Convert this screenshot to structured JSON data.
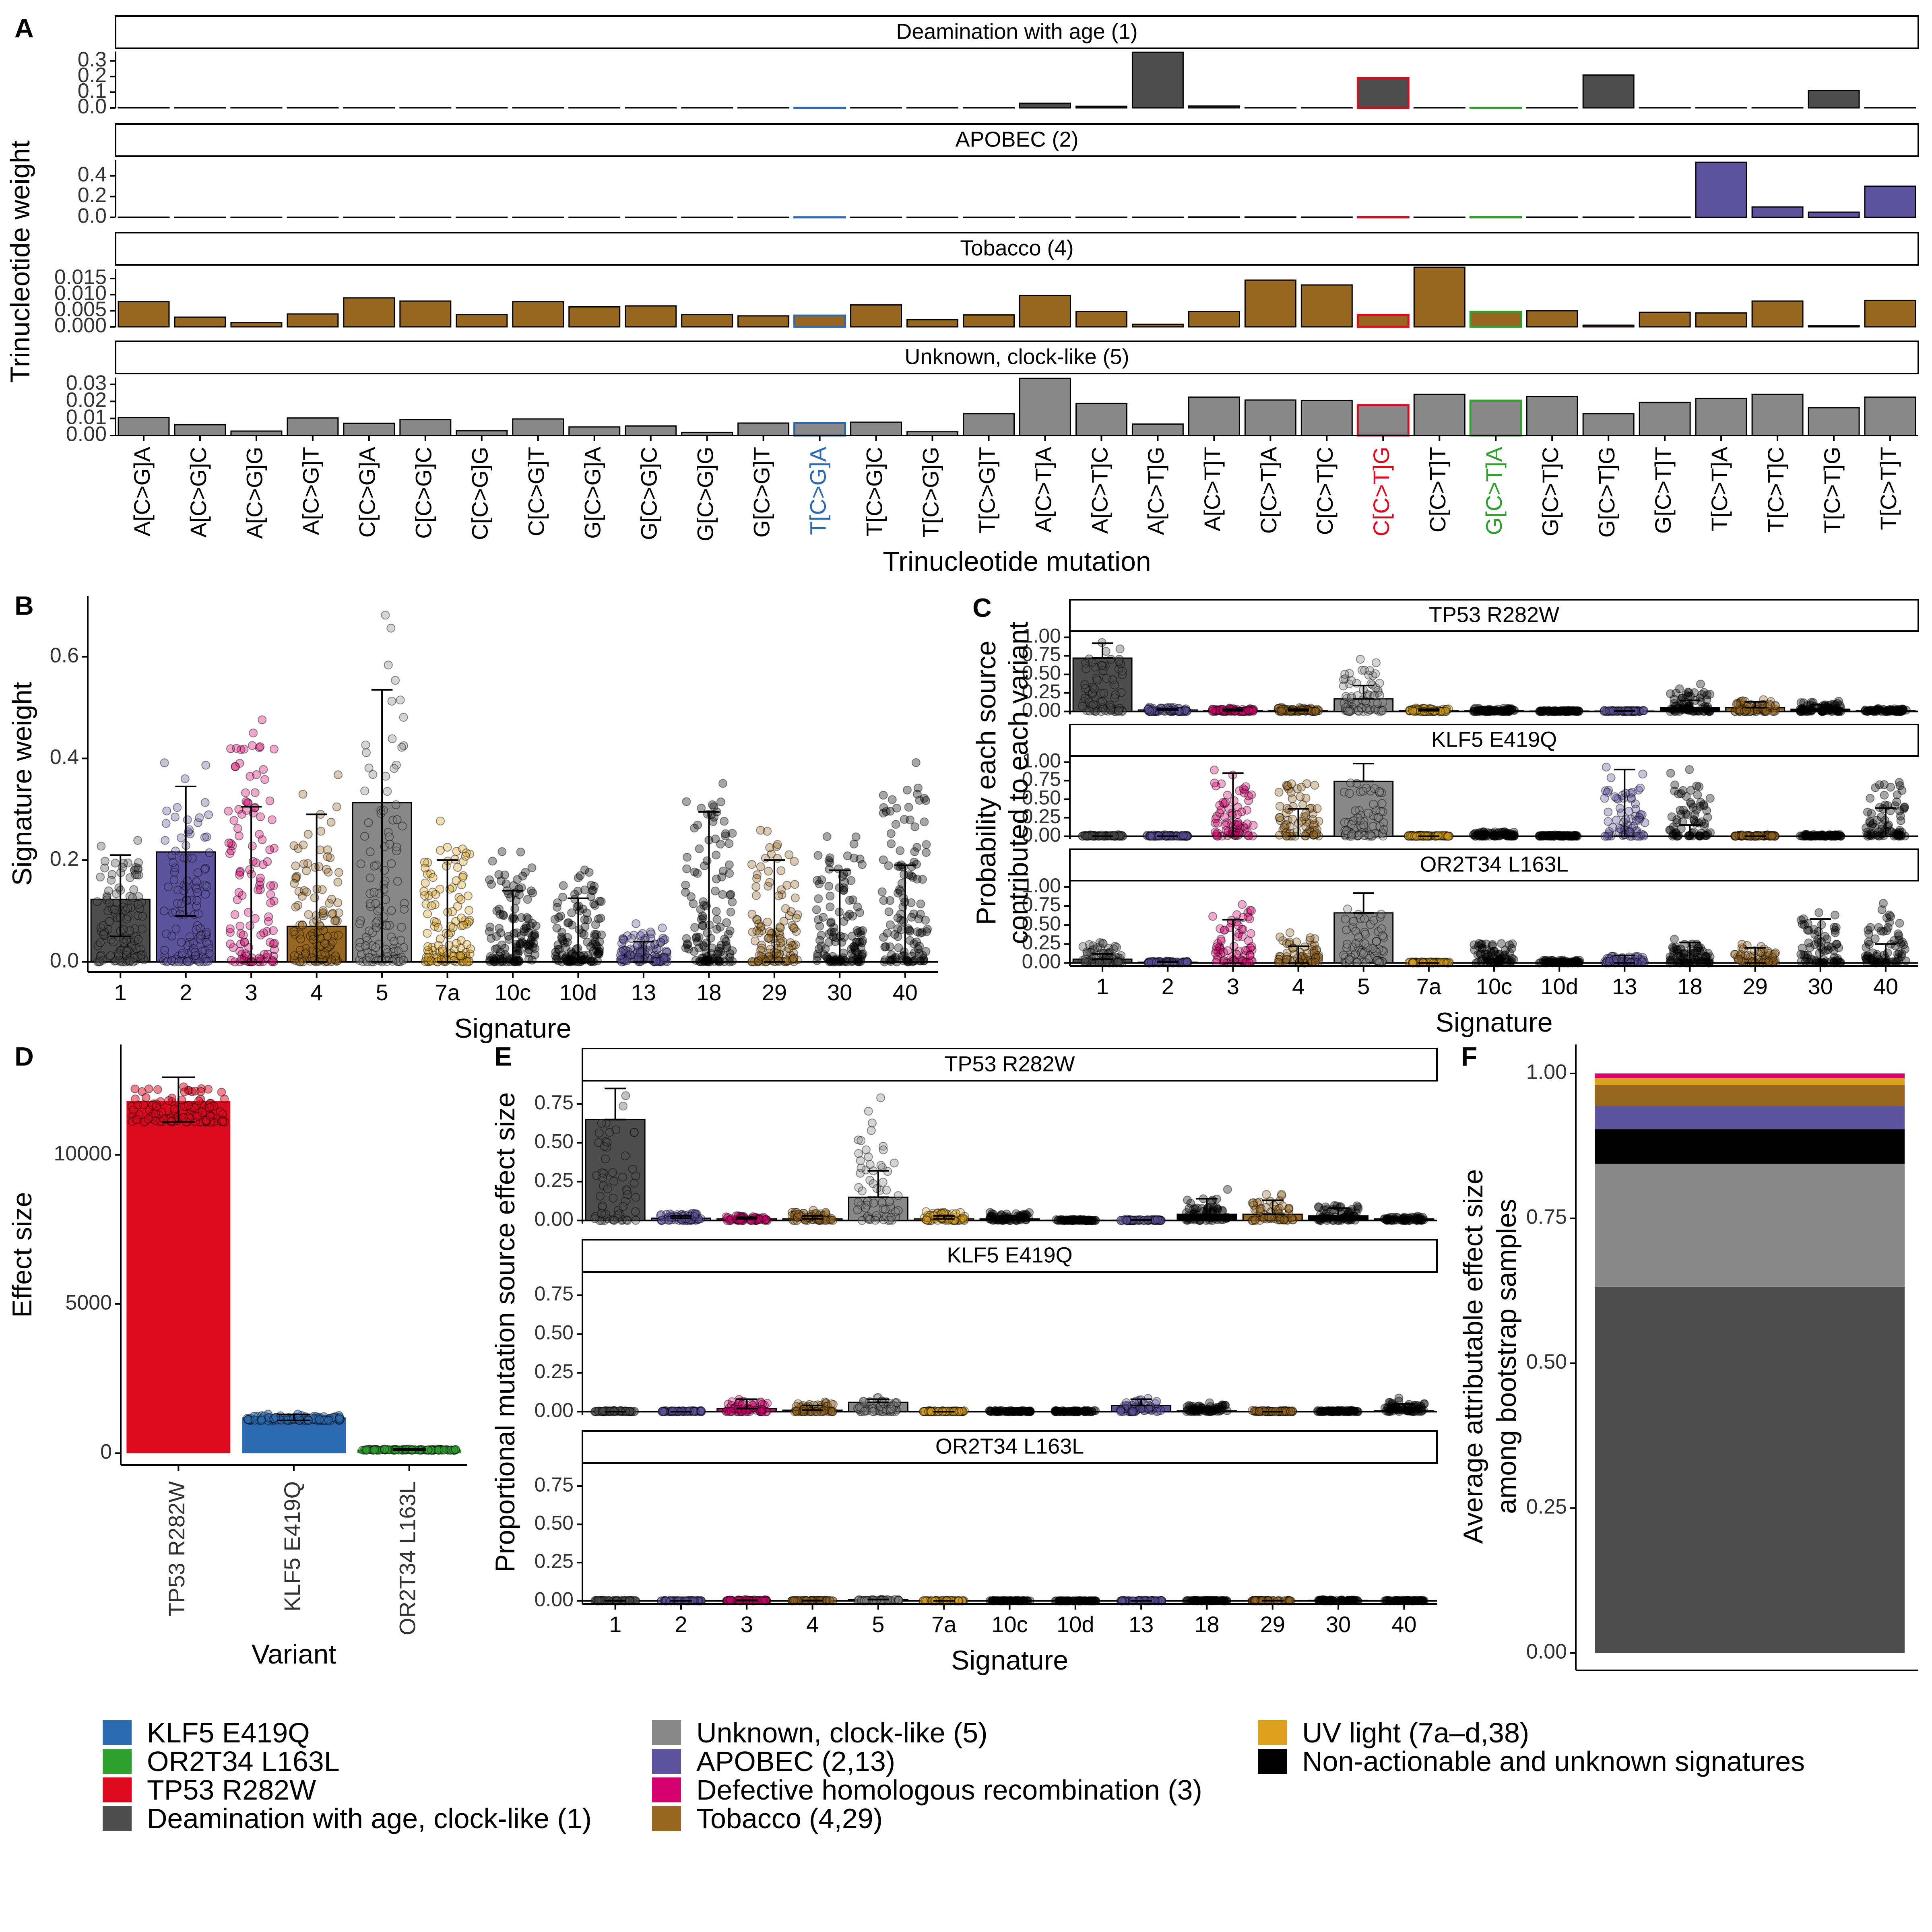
{
  "colors": {
    "deamination": "#4d4d4d",
    "apobec": "#5e549e",
    "tobacco": "#976620",
    "clock5": "#888888",
    "hr": "#d6006f",
    "uv": "#dba11c",
    "other": "#000000",
    "tp53": "#dc0a1f",
    "klf5": "#2c6bb2",
    "or2t34": "#2fa02f"
  },
  "chart_data": [
    {
      "panel": "A",
      "type": "bar",
      "ylabel": "Trinucleotide weight",
      "xlabel": "Trinucleotide mutation",
      "categories": [
        "A[C>G]A",
        "A[C>G]C",
        "A[C>G]G",
        "A[C>G]T",
        "C[C>G]A",
        "C[C>G]C",
        "C[C>G]G",
        "C[C>G]T",
        "G[C>G]A",
        "G[C>G]C",
        "G[C>G]G",
        "G[C>G]T",
        "T[C>G]A",
        "T[C>G]C",
        "T[C>G]G",
        "T[C>G]T",
        "A[C>T]A",
        "A[C>T]C",
        "A[C>T]G",
        "A[C>T]T",
        "C[C>T]A",
        "C[C>T]C",
        "C[C>T]G",
        "C[C>T]T",
        "G[C>T]A",
        "G[C>T]C",
        "G[C>T]G",
        "G[C>T]T",
        "T[C>T]A",
        "T[C>T]C",
        "T[C>T]G",
        "T[C>T]T"
      ],
      "highlight": {
        "T[C>G]A": "klf5",
        "C[C>T]G": "tp53",
        "G[C>T]A": "or2t34"
      },
      "facets": [
        {
          "title": "Deamination with age (1)",
          "color": "deamination",
          "ylim": [
            0,
            0.36
          ],
          "ticks": [
            "0.0",
            "0.1",
            "0.2",
            "0.3"
          ],
          "tick_values": [
            0,
            0.1,
            0.2,
            0.3
          ],
          "values": [
            0.002,
            0.001,
            0.001,
            0.002,
            0.001,
            0.001,
            0.001,
            0.001,
            0.001,
            0.001,
            0.001,
            0.001,
            0.001,
            0.001,
            0.001,
            0.001,
            0.03,
            0.01,
            0.355,
            0.012,
            0.001,
            0.001,
            0.19,
            0.001,
            0.001,
            0.001,
            0.21,
            0.001,
            0.001,
            0.001,
            0.11,
            0.001
          ]
        },
        {
          "title": "APOBEC (2)",
          "color": "apobec",
          "ylim": [
            0,
            0.55
          ],
          "ticks": [
            "0.0",
            "0.2",
            "0.4"
          ],
          "tick_values": [
            0,
            0.2,
            0.4
          ],
          "values": [
            0.002,
            0.001,
            0.001,
            0.001,
            0.001,
            0.001,
            0.001,
            0.001,
            0.001,
            0.001,
            0.001,
            0.001,
            0.001,
            0.001,
            0.001,
            0.001,
            0.001,
            0.002,
            0.002,
            0.004,
            0.004,
            0.003,
            0.002,
            0.002,
            0.002,
            0.003,
            0.003,
            0.003,
            0.53,
            0.1,
            0.05,
            0.3
          ]
        },
        {
          "title": "Tobacco (4)",
          "color": "tobacco",
          "ylim": [
            0,
            0.018
          ],
          "ticks": [
            "0.000",
            "0.005",
            "0.010",
            "0.015"
          ],
          "tick_values": [
            0,
            0.005,
            0.01,
            0.015
          ],
          "values": [
            0.0078,
            0.003,
            0.0013,
            0.004,
            0.009,
            0.008,
            0.0038,
            0.0078,
            0.0062,
            0.0065,
            0.0038,
            0.0034,
            0.0035,
            0.0068,
            0.0022,
            0.0037,
            0.0097,
            0.0048,
            0.0008,
            0.0048,
            0.0145,
            0.013,
            0.0037,
            0.0185,
            0.0047,
            0.005,
            0.0005,
            0.0045,
            0.0043,
            0.008,
            0.0003,
            0.0082
          ]
        },
        {
          "title": "Unknown, clock-like (5)",
          "color": "clock5",
          "ylim": [
            0,
            0.034
          ],
          "ticks": [
            "0.00",
            "0.01",
            "0.02",
            "0.03"
          ],
          "tick_values": [
            0,
            0.01,
            0.02,
            0.03
          ],
          "values": [
            0.0105,
            0.0063,
            0.0026,
            0.0103,
            0.0072,
            0.0093,
            0.0028,
            0.0097,
            0.005,
            0.0056,
            0.0018,
            0.0073,
            0.0073,
            0.0078,
            0.0022,
            0.0128,
            0.0335,
            0.0188,
            0.0067,
            0.0225,
            0.0208,
            0.0205,
            0.0178,
            0.0242,
            0.0205,
            0.0228,
            0.0128,
            0.0195,
            0.0217,
            0.0242,
            0.0163,
            0.0225
          ]
        }
      ]
    },
    {
      "panel": "B",
      "type": "bar",
      "xlabel": "Signature",
      "ylabel": "Signature weight",
      "categories": [
        "1",
        "2",
        "3",
        "4",
        "5",
        "7a",
        "10c",
        "10d",
        "13",
        "18",
        "29",
        "30",
        "40"
      ],
      "colors": [
        "deamination",
        "apobec",
        "hr",
        "tobacco",
        "clock5",
        "uv",
        "other",
        "other",
        "apobec",
        "other",
        "tobacco",
        "other",
        "other"
      ],
      "values": [
        0.123,
        0.216,
        0.0,
        0.07,
        0.313,
        0.0,
        0.0,
        0.0,
        0.0,
        0.0,
        0.0,
        0.0,
        0.0
      ],
      "err_low": [
        0.05,
        0.09,
        0.0,
        0.0,
        0.0,
        0.0,
        0.0,
        0.0,
        0.0,
        0.0,
        0.0,
        0.0,
        0.0
      ],
      "err_high": [
        0.21,
        0.345,
        0.305,
        0.29,
        0.535,
        0.2,
        0.14,
        0.125,
        0.04,
        0.295,
        0.2,
        0.18,
        0.19
      ],
      "jitter_max": [
        0.27,
        0.41,
        0.58,
        0.37,
        0.69,
        0.31,
        0.24,
        0.19,
        0.08,
        0.43,
        0.31,
        0.28,
        0.46
      ],
      "ylim": [
        -0.02,
        0.72
      ],
      "ticks": [
        "0.0",
        "0.2",
        "0.4",
        "0.6"
      ],
      "tick_values": [
        0,
        0.2,
        0.4,
        0.6
      ]
    },
    {
      "panel": "C",
      "type": "bar",
      "xlabel": "Signature",
      "ylabel": [
        "Probability each source",
        "contributed to each variant"
      ],
      "categories": [
        "1",
        "2",
        "3",
        "4",
        "5",
        "7a",
        "10c",
        "10d",
        "13",
        "18",
        "29",
        "30",
        "40"
      ],
      "colors": [
        "deamination",
        "apobec",
        "hr",
        "tobacco",
        "clock5",
        "uv",
        "other",
        "other",
        "apobec",
        "other",
        "tobacco",
        "other",
        "other"
      ],
      "ylim": [
        -0.04,
        1.1
      ],
      "ticks": [
        "0.00",
        "0.25",
        "0.50",
        "0.75",
        "1.00"
      ],
      "tick_values": [
        0,
        0.25,
        0.5,
        0.75,
        1.0
      ],
      "facets": [
        {
          "title": "TP53 R282W",
          "values": [
            0.72,
            0.02,
            0.01,
            0.01,
            0.17,
            0.01,
            0.01,
            0.005,
            0.005,
            0.05,
            0.05,
            0.03,
            0.01
          ],
          "err_high": [
            0.92,
            0.04,
            0.03,
            0.03,
            0.35,
            0.03,
            0.03,
            0.01,
            0.01,
            0.15,
            0.13,
            0.09,
            0.03
          ],
          "jitter_max": [
            0.97,
            0.07,
            0.05,
            0.06,
            0.88,
            0.05,
            0.06,
            0.02,
            0.02,
            0.38,
            0.22,
            0.17,
            0.05
          ]
        },
        {
          "title": "KLF5 E419Q",
          "values": [
            0.0,
            0.0,
            0.0,
            0.0,
            0.74,
            0.0,
            0.0,
            0.0,
            0.0,
            0.0,
            0.0,
            0.0,
            0.0
          ],
          "err_high": [
            0.0,
            0.0,
            0.85,
            0.37,
            0.98,
            0.0,
            0.0,
            0.0,
            0.9,
            0.15,
            0.0,
            0.0,
            0.38
          ],
          "jitter_max": [
            0.02,
            0.02,
            0.95,
            0.95,
            1.0,
            0.02,
            0.08,
            0.02,
            0.98,
            0.95,
            0.02,
            0.03,
            0.97
          ]
        },
        {
          "title": "OR2T34 L163L",
          "values": [
            0.05,
            0.01,
            0.0,
            0.0,
            0.66,
            0.0,
            0.0,
            0.0,
            0.0,
            0.0,
            0.0,
            0.0,
            0.0
          ],
          "err_high": [
            0.12,
            0.02,
            0.57,
            0.22,
            0.92,
            0.0,
            0.05,
            0.02,
            0.1,
            0.27,
            0.2,
            0.58,
            0.25
          ],
          "jitter_max": [
            0.38,
            0.03,
            0.95,
            0.45,
            0.97,
            0.02,
            0.35,
            0.05,
            0.12,
            0.35,
            0.32,
            0.8,
            0.9
          ]
        }
      ]
    },
    {
      "panel": "D",
      "type": "bar",
      "xlabel": "Variant",
      "ylabel": "Effect size",
      "categories": [
        "TP53 R282W",
        "KLF5 E419Q",
        "OR2T34 L163L"
      ],
      "colors": [
        "tp53",
        "klf5",
        "or2t34"
      ],
      "values": [
        11800,
        1200,
        120
      ],
      "err_low": [
        11100,
        1100,
        100
      ],
      "err_high": [
        12600,
        1300,
        140
      ],
      "ylim": [
        -400,
        13700
      ],
      "ticks": [
        "0",
        "5000",
        "10000"
      ],
      "tick_values": [
        0,
        5000,
        10000
      ]
    },
    {
      "panel": "E",
      "type": "bar",
      "xlabel": "Signature",
      "ylabel": "Proportional mutation source effect size",
      "categories": [
        "1",
        "2",
        "3",
        "4",
        "5",
        "7a",
        "10c",
        "10d",
        "13",
        "18",
        "29",
        "30",
        "40"
      ],
      "colors": [
        "deamination",
        "apobec",
        "hr",
        "tobacco",
        "clock5",
        "uv",
        "other",
        "other",
        "apobec",
        "other",
        "tobacco",
        "other",
        "other"
      ],
      "ylim": [
        -0.02,
        0.9
      ],
      "ticks": [
        "0.00",
        "0.25",
        "0.50",
        "0.75"
      ],
      "tick_values": [
        0,
        0.25,
        0.5,
        0.75
      ],
      "facets": [
        {
          "title": "TP53 R282W",
          "values": [
            0.65,
            0.015,
            0.01,
            0.01,
            0.15,
            0.01,
            0.01,
            0.002,
            0.002,
            0.04,
            0.04,
            0.03,
            0.01
          ],
          "err_high": [
            0.85,
            0.03,
            0.02,
            0.03,
            0.32,
            0.03,
            0.03,
            0.005,
            0.005,
            0.14,
            0.13,
            0.08,
            0.02
          ],
          "jitter_max": [
            0.87,
            0.06,
            0.04,
            0.07,
            0.79,
            0.08,
            0.07,
            0.01,
            0.01,
            0.2,
            0.18,
            0.13,
            0.03
          ]
        },
        {
          "title": "KLF5 E419Q",
          "values": [
            0.0,
            0.0,
            0.02,
            0.01,
            0.06,
            0.0,
            0.0,
            0.0,
            0.04,
            0.005,
            0.0,
            0.0,
            0.005
          ],
          "err_high": [
            0.0,
            0.0,
            0.08,
            0.04,
            0.08,
            0.0,
            0.0,
            0.0,
            0.08,
            0.015,
            0.0,
            0.0,
            0.05
          ],
          "jitter_max": [
            0.01,
            0.01,
            0.09,
            0.07,
            0.1,
            0.01,
            0.01,
            0.01,
            0.09,
            0.06,
            0.01,
            0.01,
            0.09
          ]
        },
        {
          "title": "OR2T34 L163L",
          "values": [
            0.0,
            0.0,
            0.002,
            0.001,
            0.008,
            0.0,
            0.0,
            0.0,
            0.0,
            0.001,
            0.001,
            0.003,
            0.0
          ],
          "err_high": [
            0.002,
            0.001,
            0.006,
            0.003,
            0.01,
            0.0,
            0.001,
            0.0,
            0.001,
            0.002,
            0.002,
            0.006,
            0.002
          ],
          "jitter_max": [
            0.004,
            0.002,
            0.01,
            0.005,
            0.012,
            0.002,
            0.003,
            0.001,
            0.003,
            0.005,
            0.004,
            0.009,
            0.006
          ]
        }
      ]
    },
    {
      "panel": "F",
      "type": "bar",
      "stacked": true,
      "ylabel": [
        "Average attributable effect size",
        "among bootstrap samples"
      ],
      "ylim": [
        -0.03,
        1.05
      ],
      "ticks": [
        "0.00",
        "0.25",
        "0.50",
        "0.75",
        "1.00"
      ],
      "tick_values": [
        0,
        0.25,
        0.5,
        0.75,
        1.0
      ],
      "stack_order": [
        "deamination",
        "clock5",
        "other",
        "apobec",
        "tobacco",
        "uv",
        "hr"
      ],
      "values": [
        0.632,
        0.212,
        0.06,
        0.04,
        0.036,
        0.012,
        0.008
      ]
    }
  ],
  "legend": [
    {
      "label": "KLF5 E419Q",
      "color": "klf5"
    },
    {
      "label": "OR2T34 L163L",
      "color": "or2t34"
    },
    {
      "label": "TP53 R282W",
      "color": "tp53"
    },
    {
      "label": "Deamination with age, clock-like (1)",
      "color": "deamination"
    },
    {
      "label": "Unknown, clock-like (5)",
      "color": "clock5"
    },
    {
      "label": "APOBEC (2,13)",
      "color": "apobec"
    },
    {
      "label": "Defective homologous recombination (3)",
      "color": "hr"
    },
    {
      "label": "Tobacco (4,29)",
      "color": "tobacco"
    },
    {
      "label": "UV light (7a–d,38)",
      "color": "uv"
    },
    {
      "label": "Non-actionable and unknown signatures",
      "color": "other"
    }
  ],
  "panel_labels": [
    "A",
    "B",
    "C",
    "D",
    "E",
    "F"
  ]
}
